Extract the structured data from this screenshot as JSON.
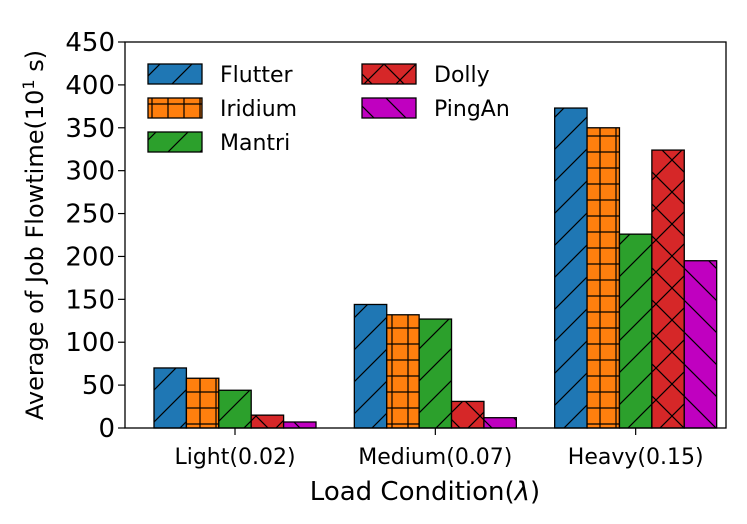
{
  "chart_data": {
    "type": "bar",
    "title": "",
    "xlabel": "Load Condition(",
    "xlabel_symbol": "λ",
    "xlabel_close": ")",
    "ylabel": "Average of Job Flowtime(10",
    "ylabel_sup": "1",
    "ylabel_unit": " s)",
    "ylim": [
      0,
      450
    ],
    "yticks": [
      "0",
      "50",
      "100",
      "150",
      "200",
      "250",
      "300",
      "350",
      "400",
      "450"
    ],
    "categories": [
      "Light(0.02)",
      "Medium(0.07)",
      "Heavy(0.15)"
    ],
    "legend_position": "top-left",
    "series": [
      {
        "name": "Flutter",
        "color": "#1f77b4",
        "hatch": "diagonal",
        "values": [
          70,
          144,
          373
        ]
      },
      {
        "name": "Iridium",
        "color": "#ff7f0e",
        "hatch": "grid",
        "values": [
          58,
          132,
          350
        ]
      },
      {
        "name": "Mantri",
        "color": "#2ca02c",
        "hatch": "diagonal",
        "values": [
          44,
          127,
          226
        ]
      },
      {
        "name": "Dolly",
        "color": "#d62728",
        "hatch": "cross",
        "values": [
          15,
          31,
          324
        ]
      },
      {
        "name": "PingAn",
        "color": "#c000c0",
        "hatch": "back-diagonal",
        "values": [
          7,
          12,
          195
        ]
      }
    ]
  }
}
